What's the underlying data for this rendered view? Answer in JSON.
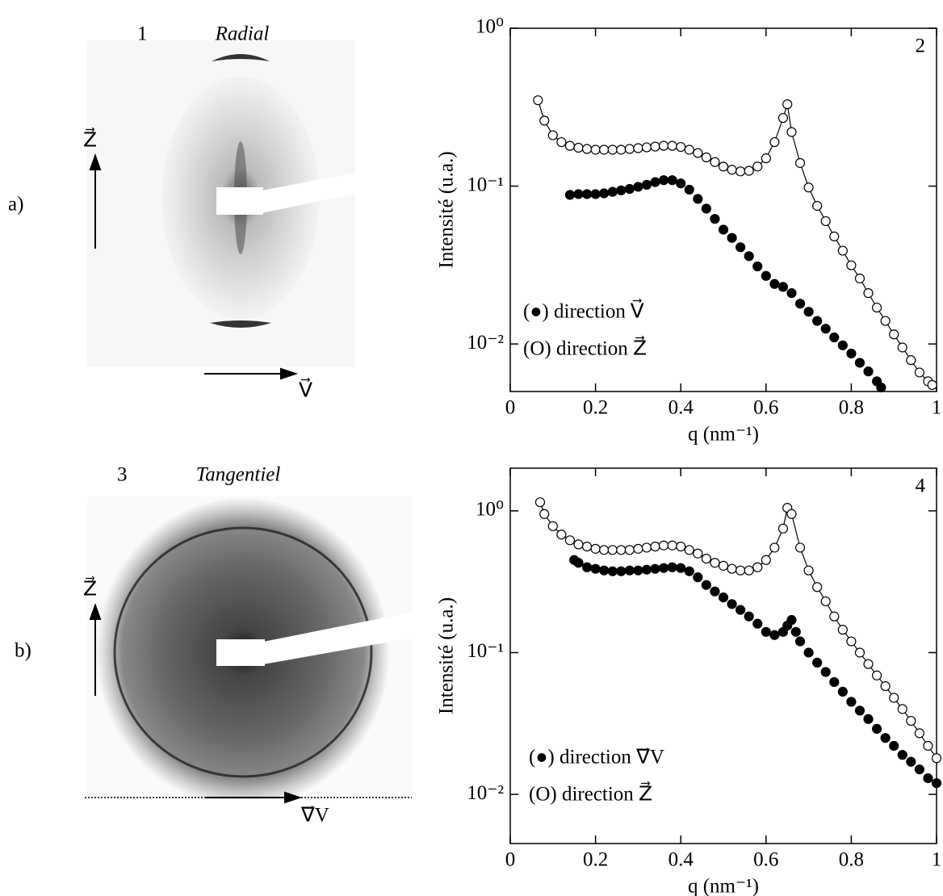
{
  "images": [
    {
      "number": "1",
      "title": "Radial",
      "vertical_label": "Z⃗",
      "horizontal_label": "V⃗",
      "row_label": "a)"
    },
    {
      "number": "3",
      "title": "Tangentiel",
      "vertical_label": "Z⃗",
      "horizontal_label": "∇⃗V",
      "row_label": "b)"
    }
  ],
  "chart_data": [
    {
      "type": "scatter",
      "label": "2",
      "x_label": "q (nm⁻¹)",
      "y_label": "Intensité (u.a.)",
      "log_y": true,
      "xlim": [
        0,
        1
      ],
      "xticks": [
        0,
        0.2,
        0.4,
        0.6,
        0.8,
        1
      ],
      "ylim": [
        0.005,
        1
      ],
      "yticks": [
        {
          "value": 0.01,
          "label": "10⁻²"
        },
        {
          "value": 0.1,
          "label": "10⁻¹"
        },
        {
          "value": 1,
          "label": "10⁰"
        }
      ],
      "series": [
        {
          "name": "(●) direction V⃗",
          "color": "#000000",
          "marker": "filled",
          "line": false,
          "x": [
            0.14,
            0.16,
            0.18,
            0.2,
            0.22,
            0.24,
            0.26,
            0.28,
            0.3,
            0.32,
            0.34,
            0.36,
            0.38,
            0.4,
            0.42,
            0.44,
            0.46,
            0.48,
            0.5,
            0.52,
            0.54,
            0.56,
            0.58,
            0.6,
            0.62,
            0.64,
            0.66,
            0.68,
            0.7,
            0.72,
            0.74,
            0.76,
            0.78,
            0.8,
            0.82,
            0.84,
            0.86,
            0.87
          ],
          "values": [
            0.088,
            0.089,
            0.089,
            0.089,
            0.09,
            0.092,
            0.094,
            0.096,
            0.099,
            0.102,
            0.106,
            0.109,
            0.109,
            0.104,
            0.095,
            0.083,
            0.072,
            0.062,
            0.053,
            0.047,
            0.041,
            0.036,
            0.031,
            0.027,
            0.024,
            0.023,
            0.021,
            0.018,
            0.016,
            0.014,
            0.0125,
            0.011,
            0.0098,
            0.0087,
            0.0076,
            0.0067,
            0.0058,
            0.0053
          ]
        },
        {
          "name": "(O) direction Z⃗",
          "color": "#000000",
          "marker": "open",
          "line": true,
          "x": [
            0.065,
            0.08,
            0.1,
            0.12,
            0.14,
            0.16,
            0.18,
            0.2,
            0.22,
            0.24,
            0.26,
            0.28,
            0.3,
            0.32,
            0.34,
            0.36,
            0.38,
            0.4,
            0.42,
            0.44,
            0.46,
            0.48,
            0.5,
            0.52,
            0.54,
            0.56,
            0.58,
            0.6,
            0.62,
            0.64,
            0.65,
            0.66,
            0.68,
            0.7,
            0.72,
            0.74,
            0.76,
            0.78,
            0.8,
            0.82,
            0.84,
            0.86,
            0.88,
            0.9,
            0.92,
            0.94,
            0.96,
            0.98,
            0.99
          ],
          "values": [
            0.35,
            0.26,
            0.21,
            0.19,
            0.18,
            0.175,
            0.172,
            0.17,
            0.17,
            0.17,
            0.17,
            0.172,
            0.174,
            0.176,
            0.178,
            0.18,
            0.18,
            0.177,
            0.17,
            0.162,
            0.152,
            0.142,
            0.133,
            0.127,
            0.124,
            0.125,
            0.133,
            0.15,
            0.19,
            0.27,
            0.33,
            0.22,
            0.14,
            0.098,
            0.075,
            0.06,
            0.048,
            0.039,
            0.0315,
            0.026,
            0.021,
            0.017,
            0.014,
            0.0115,
            0.0095,
            0.0079,
            0.0066,
            0.0058,
            0.0055
          ]
        }
      ]
    },
    {
      "type": "scatter",
      "label": "4",
      "x_label": "q (nm⁻¹)",
      "y_label": "Intensité (u.a.)",
      "log_y": true,
      "xlim": [
        0,
        1
      ],
      "xticks": [
        0,
        0.2,
        0.4,
        0.6,
        0.8,
        1
      ],
      "ylim": [
        0.0045,
        2
      ],
      "yticks": [
        {
          "value": 0.01,
          "label": "10⁻²"
        },
        {
          "value": 0.1,
          "label": "10⁻¹"
        },
        {
          "value": 1,
          "label": "10⁰"
        }
      ],
      "series": [
        {
          "name": "(●) direction ∇⃗V",
          "color": "#000000",
          "marker": "filled",
          "line": false,
          "x": [
            0.15,
            0.16,
            0.18,
            0.2,
            0.22,
            0.24,
            0.26,
            0.28,
            0.3,
            0.32,
            0.34,
            0.36,
            0.38,
            0.4,
            0.42,
            0.44,
            0.46,
            0.48,
            0.5,
            0.52,
            0.54,
            0.56,
            0.58,
            0.6,
            0.62,
            0.64,
            0.65,
            0.66,
            0.67,
            0.68,
            0.7,
            0.72,
            0.74,
            0.76,
            0.78,
            0.8,
            0.82,
            0.84,
            0.86,
            0.88,
            0.9,
            0.92,
            0.94,
            0.96,
            0.98,
            1.0
          ],
          "values": [
            0.45,
            0.43,
            0.4,
            0.39,
            0.38,
            0.375,
            0.375,
            0.38,
            0.38,
            0.385,
            0.39,
            0.395,
            0.4,
            0.395,
            0.375,
            0.34,
            0.3,
            0.27,
            0.245,
            0.22,
            0.2,
            0.18,
            0.16,
            0.14,
            0.133,
            0.14,
            0.155,
            0.17,
            0.14,
            0.12,
            0.1,
            0.085,
            0.073,
            0.062,
            0.053,
            0.045,
            0.039,
            0.034,
            0.029,
            0.025,
            0.022,
            0.019,
            0.017,
            0.015,
            0.013,
            0.012
          ]
        },
        {
          "name": "(O) direction Z⃗",
          "color": "#000000",
          "marker": "open",
          "line": true,
          "x": [
            0.07,
            0.08,
            0.1,
            0.12,
            0.14,
            0.16,
            0.18,
            0.2,
            0.22,
            0.24,
            0.26,
            0.28,
            0.3,
            0.32,
            0.34,
            0.36,
            0.38,
            0.4,
            0.42,
            0.44,
            0.46,
            0.48,
            0.5,
            0.52,
            0.54,
            0.56,
            0.58,
            0.6,
            0.62,
            0.64,
            0.65,
            0.66,
            0.68,
            0.7,
            0.72,
            0.74,
            0.76,
            0.78,
            0.8,
            0.82,
            0.84,
            0.86,
            0.88,
            0.9,
            0.92,
            0.94,
            0.96,
            0.98,
            1.0
          ],
          "values": [
            1.15,
            0.95,
            0.78,
            0.68,
            0.62,
            0.58,
            0.56,
            0.54,
            0.53,
            0.53,
            0.53,
            0.53,
            0.54,
            0.55,
            0.56,
            0.57,
            0.57,
            0.56,
            0.53,
            0.5,
            0.46,
            0.43,
            0.41,
            0.39,
            0.38,
            0.38,
            0.4,
            0.45,
            0.55,
            0.75,
            1.05,
            0.95,
            0.55,
            0.38,
            0.29,
            0.23,
            0.18,
            0.145,
            0.12,
            0.1,
            0.083,
            0.069,
            0.058,
            0.048,
            0.04,
            0.033,
            0.027,
            0.022,
            0.018
          ]
        }
      ]
    }
  ]
}
